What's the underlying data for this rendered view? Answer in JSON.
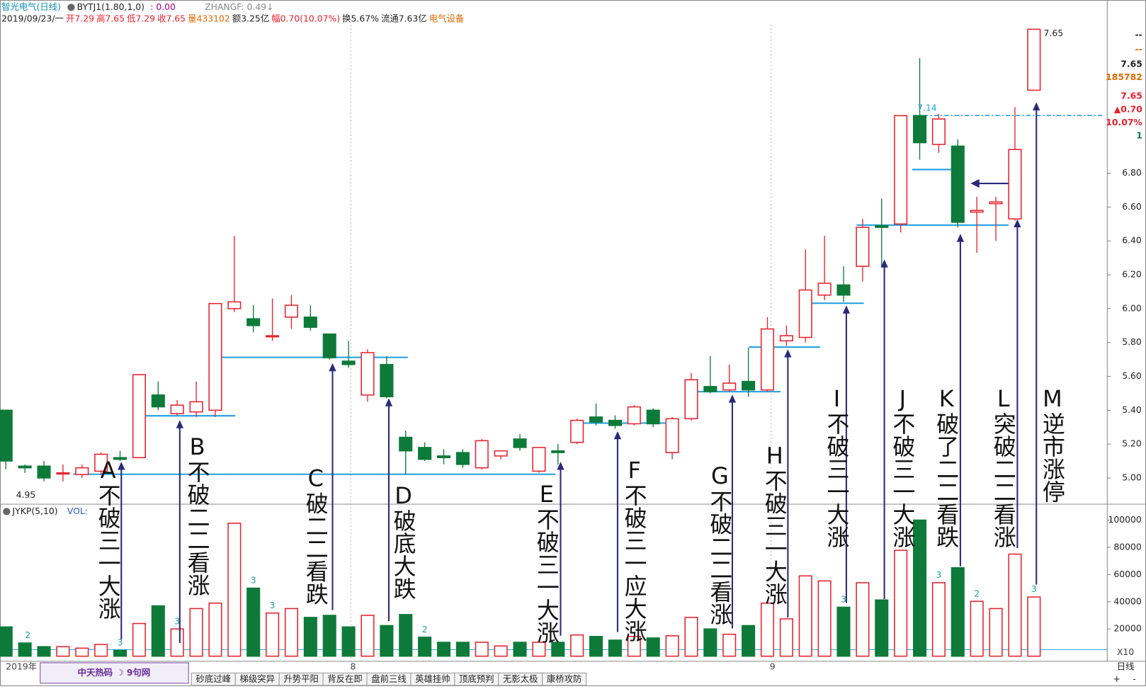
{
  "header": {
    "name": "智光电气(日线)",
    "indicator": "BYTJ1(1.80,1,0)",
    "indicator_value": ": 0.00",
    "zhangf": "ZHANGF: 0.49↓",
    "date": "2019/09/23/一",
    "quote": [
      "开7.29",
      "高7.65",
      "低7.29",
      "收7.65",
      "量433102",
      "额3.25亿",
      "幅0.70(10.07%)",
      "换5.67%",
      "流通7.63亿"
    ],
    "sector": "电气设备"
  },
  "info_panel": [
    "--",
    "--",
    "7.65",
    "185782",
    "7.65",
    "▲0.70",
    "10.07%",
    "1"
  ],
  "chart_data": {
    "type": "candlestick",
    "open": [
      5.4,
      5.07,
      5.07,
      5.03,
      5.02,
      5.04,
      5.12,
      5.12,
      5.49,
      5.38,
      5.39,
      5.4,
      6.0,
      5.94,
      5.84,
      5.95,
      5.95,
      5.85,
      5.69,
      5.49,
      5.67,
      5.24,
      5.18,
      5.13,
      5.15,
      5.06,
      5.13,
      5.23,
      5.04,
      5.16,
      5.21,
      5.36,
      5.34,
      5.32,
      5.4,
      5.15,
      5.35,
      5.54,
      5.52,
      5.57,
      5.52,
      5.81,
      5.83,
      6.08,
      6.14,
      6.25,
      6.49,
      6.5,
      7.14,
      6.97,
      6.96,
      6.57,
      6.62,
      6.53,
      7.29
    ],
    "high": [
      5.4,
      5.08,
      5.1,
      5.08,
      5.08,
      5.15,
      5.16,
      5.61,
      5.57,
      5.46,
      5.57,
      6.03,
      6.43,
      6.02,
      6.06,
      6.08,
      6.02,
      5.85,
      5.81,
      5.76,
      5.72,
      5.28,
      5.21,
      5.17,
      5.17,
      5.23,
      5.16,
      5.26,
      5.18,
      5.2,
      5.35,
      5.44,
      5.37,
      5.43,
      5.41,
      5.36,
      5.62,
      5.72,
      5.67,
      5.77,
      5.95,
      5.9,
      6.35,
      6.43,
      6.25,
      6.53,
      6.65,
      7.14,
      7.48,
      7.15,
      7.0,
      6.66,
      6.66,
      7.19,
      7.65
    ],
    "low": [
      5.05,
      5.03,
      4.98,
      4.98,
      5.0,
      5.02,
      5.1,
      5.12,
      5.4,
      5.37,
      5.36,
      5.36,
      5.98,
      5.86,
      5.81,
      5.88,
      5.87,
      5.7,
      5.65,
      5.45,
      5.47,
      5.02,
      5.1,
      5.08,
      5.06,
      5.05,
      5.11,
      5.16,
      5.03,
      5.08,
      5.2,
      5.31,
      5.29,
      5.31,
      5.3,
      5.11,
      5.34,
      5.5,
      5.51,
      5.48,
      5.51,
      5.78,
      5.8,
      6.05,
      6.04,
      6.16,
      6.25,
      6.45,
      6.88,
      6.92,
      6.48,
      6.33,
      6.4,
      6.52,
      7.29
    ],
    "close": [
      5.1,
      5.06,
      5.0,
      5.03,
      5.06,
      5.14,
      5.11,
      5.61,
      5.42,
      5.43,
      5.45,
      6.03,
      6.04,
      5.9,
      5.84,
      6.02,
      5.89,
      5.71,
      5.67,
      5.74,
      5.48,
      5.16,
      5.11,
      5.12,
      5.08,
      5.22,
      5.16,
      5.18,
      5.18,
      5.15,
      5.34,
      5.33,
      5.31,
      5.42,
      5.32,
      5.35,
      5.58,
      5.51,
      5.56,
      5.52,
      5.88,
      5.84,
      6.11,
      6.15,
      6.08,
      6.48,
      6.48,
      7.14,
      6.98,
      7.12,
      6.51,
      6.58,
      6.63,
      6.94,
      7.65
    ],
    "volume": [
      21500,
      9700,
      7000,
      7000,
      5900,
      8600,
      4300,
      24000,
      37000,
      20000,
      35000,
      39000,
      97700,
      50000,
      31700,
      35000,
      28500,
      30000,
      21500,
      30000,
      22500,
      30600,
      14000,
      10200,
      10200,
      10200,
      7500,
      10200,
      10200,
      10200,
      15600,
      14500,
      11800,
      14500,
      13400,
      15000,
      28500,
      20000,
      16100,
      22500,
      39000,
      27400,
      59000,
      55300,
      36000,
      54000,
      41300,
      77800,
      100000,
      54000,
      65000,
      40300,
      35000,
      75000,
      43500
    ],
    "up_color": "#e8212d",
    "down_color": "#0e7a3a",
    "level_color": "#1f9fe0",
    "ylim": [
      4.845,
      7.676
    ],
    "yticks": [
      {
        "value": 6.8,
        "label": "6.80"
      },
      {
        "value": 6.6,
        "label": "6.60"
      },
      {
        "value": 6.4,
        "label": "6.40"
      },
      {
        "value": 6.2,
        "label": "6.20"
      },
      {
        "value": 6.0,
        "label": "6.00"
      },
      {
        "value": 5.8,
        "label": "5.80"
      },
      {
        "value": 5.6,
        "label": "5.60"
      },
      {
        "value": 5.4,
        "label": "5.40"
      },
      {
        "value": 5.2,
        "label": "5.20"
      },
      {
        "value": 5.0,
        "label": "5.00"
      }
    ],
    "marked_prices": [
      7.14,
      7.65,
      4.95
    ],
    "volume_title": "JYKP(5,10)",
    "volume_label": "VOL:",
    "volume_unit": "X10",
    "y2lim": [
      0,
      110600
    ],
    "y2ticks": [
      100000,
      80000,
      60000,
      40000,
      20000
    ],
    "volume_marks": [
      "2",
      "3",
      "3",
      "3",
      "3",
      "2",
      "3",
      "3",
      "2",
      "3"
    ],
    "x_labels": [
      "2019年",
      "8",
      "9"
    ],
    "annotations": [
      "A不破三一大涨",
      "B不破二二看涨",
      "C破二二看跌",
      "D破底大跌",
      "E不破三一大涨",
      "F不破三一应大涨",
      "G不破二二看涨",
      "H不破三一大涨",
      "I不破三一大涨",
      "J不破三一大涨",
      "K破了二二看跌",
      "L突破二二看涨",
      "M逆市涨停"
    ]
  },
  "footer": {
    "logo": "中天热码 ☽ 9句网",
    "tabs": [
      "砂底过峰",
      "梯级突异",
      "升势平阳",
      "背反在即",
      "盘前三线",
      "英雄挂帅",
      "顶底预判",
      "无影太极",
      "康桥攻防"
    ],
    "period": "日线",
    "buttons": [
      "+",
      "-"
    ]
  }
}
